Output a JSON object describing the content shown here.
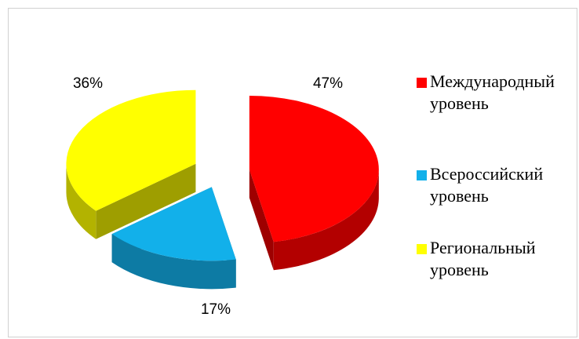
{
  "chart_data": {
    "type": "pie3d",
    "categories": [
      "Международный уровень",
      "Всероссийский уровень",
      "Региональный уровень"
    ],
    "values": [
      47,
      17,
      36
    ],
    "value_labels": [
      "47%",
      "17%",
      "36%"
    ],
    "colors": [
      "#ff0000",
      "#12b0ea",
      "#ffff00"
    ],
    "legend": "right"
  }
}
